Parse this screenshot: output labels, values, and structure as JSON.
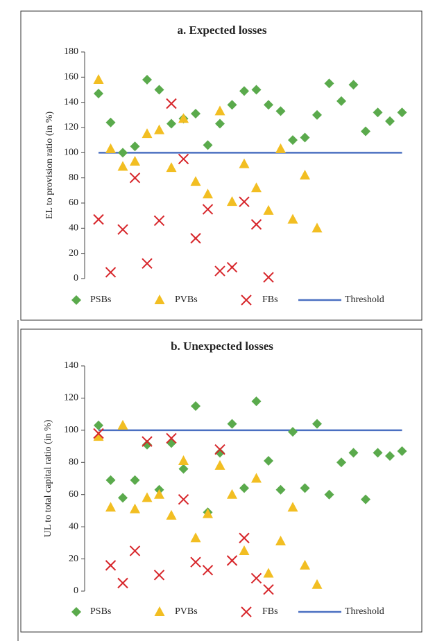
{
  "chart_data": [
    {
      "type": "scatter",
      "title": "a. Expected losses",
      "y_label": "EL to provision ratio (in %)",
      "ylim": [
        0,
        180
      ],
      "yticks": [
        0,
        20,
        40,
        60,
        80,
        100,
        120,
        140,
        160,
        180
      ],
      "legend": "bottom",
      "series": [
        {
          "name": "PSBs",
          "color": "#5aaa4c",
          "marker": "diamond",
          "values": [
            147,
            124,
            100,
            105,
            158,
            150,
            123,
            127,
            131,
            106,
            123,
            138,
            149,
            150,
            138,
            133,
            110,
            112,
            130,
            155,
            141,
            154,
            117,
            132,
            125,
            132
          ]
        },
        {
          "name": "PVBs",
          "color": "#f2be22",
          "marker": "triangle",
          "values": [
            158,
            103,
            89,
            93,
            115,
            118,
            88,
            127,
            77,
            67,
            133,
            61,
            91,
            72,
            54,
            103,
            47,
            82,
            40,
            null,
            null,
            null,
            null,
            null,
            null,
            null
          ]
        },
        {
          "name": "FBs",
          "color": "#d7262b",
          "marker": "x",
          "values": [
            47,
            5,
            39,
            80,
            12,
            46,
            139,
            95,
            32,
            55,
            6,
            9,
            61,
            43,
            1,
            null,
            null,
            null,
            null,
            null,
            null,
            null,
            null,
            null,
            null,
            null
          ]
        },
        {
          "name": "Threshold",
          "color": "#4a6fc1",
          "marker": "line",
          "values": [
            100,
            100,
            100,
            100,
            100,
            100,
            100,
            100,
            100,
            100,
            100,
            100,
            100,
            100,
            100,
            100,
            100,
            100,
            100,
            100,
            100,
            100,
            100,
            100,
            100,
            100
          ]
        }
      ]
    },
    {
      "type": "scatter",
      "title": "b. Unexpected losses",
      "y_label": "UL to total capital ratio (in %)",
      "ylim": [
        0,
        140
      ],
      "yticks": [
        0,
        20,
        40,
        60,
        80,
        100,
        120,
        140
      ],
      "legend": "bottom",
      "series": [
        {
          "name": "PSBs",
          "color": "#5aaa4c",
          "marker": "diamond",
          "values": [
            103,
            69,
            58,
            69,
            91,
            63,
            92,
            76,
            115,
            49,
            86,
            104,
            64,
            118,
            81,
            63,
            99,
            64,
            104,
            60,
            80,
            86,
            57,
            86,
            84,
            87
          ]
        },
        {
          "name": "PVBs",
          "color": "#f2be22",
          "marker": "triangle",
          "values": [
            96,
            52,
            103,
            51,
            58,
            60,
            47,
            81,
            33,
            48,
            78,
            60,
            25,
            70,
            11,
            31,
            52,
            16,
            4,
            null,
            null,
            null,
            null,
            null,
            null,
            null
          ]
        },
        {
          "name": "FBs",
          "color": "#d7262b",
          "marker": "x",
          "values": [
            98,
            16,
            5,
            25,
            93,
            10,
            95,
            57,
            18,
            13,
            88,
            19,
            33,
            8,
            1,
            null,
            null,
            null,
            null,
            null,
            null,
            null,
            null,
            null,
            null,
            null
          ]
        },
        {
          "name": "Threshold",
          "color": "#4a6fc1",
          "marker": "line",
          "values": [
            100,
            100,
            100,
            100,
            100,
            100,
            100,
            100,
            100,
            100,
            100,
            100,
            100,
            100,
            100,
            100,
            100,
            100,
            100,
            100,
            100,
            100,
            100,
            100,
            100,
            100
          ]
        }
      ]
    }
  ]
}
